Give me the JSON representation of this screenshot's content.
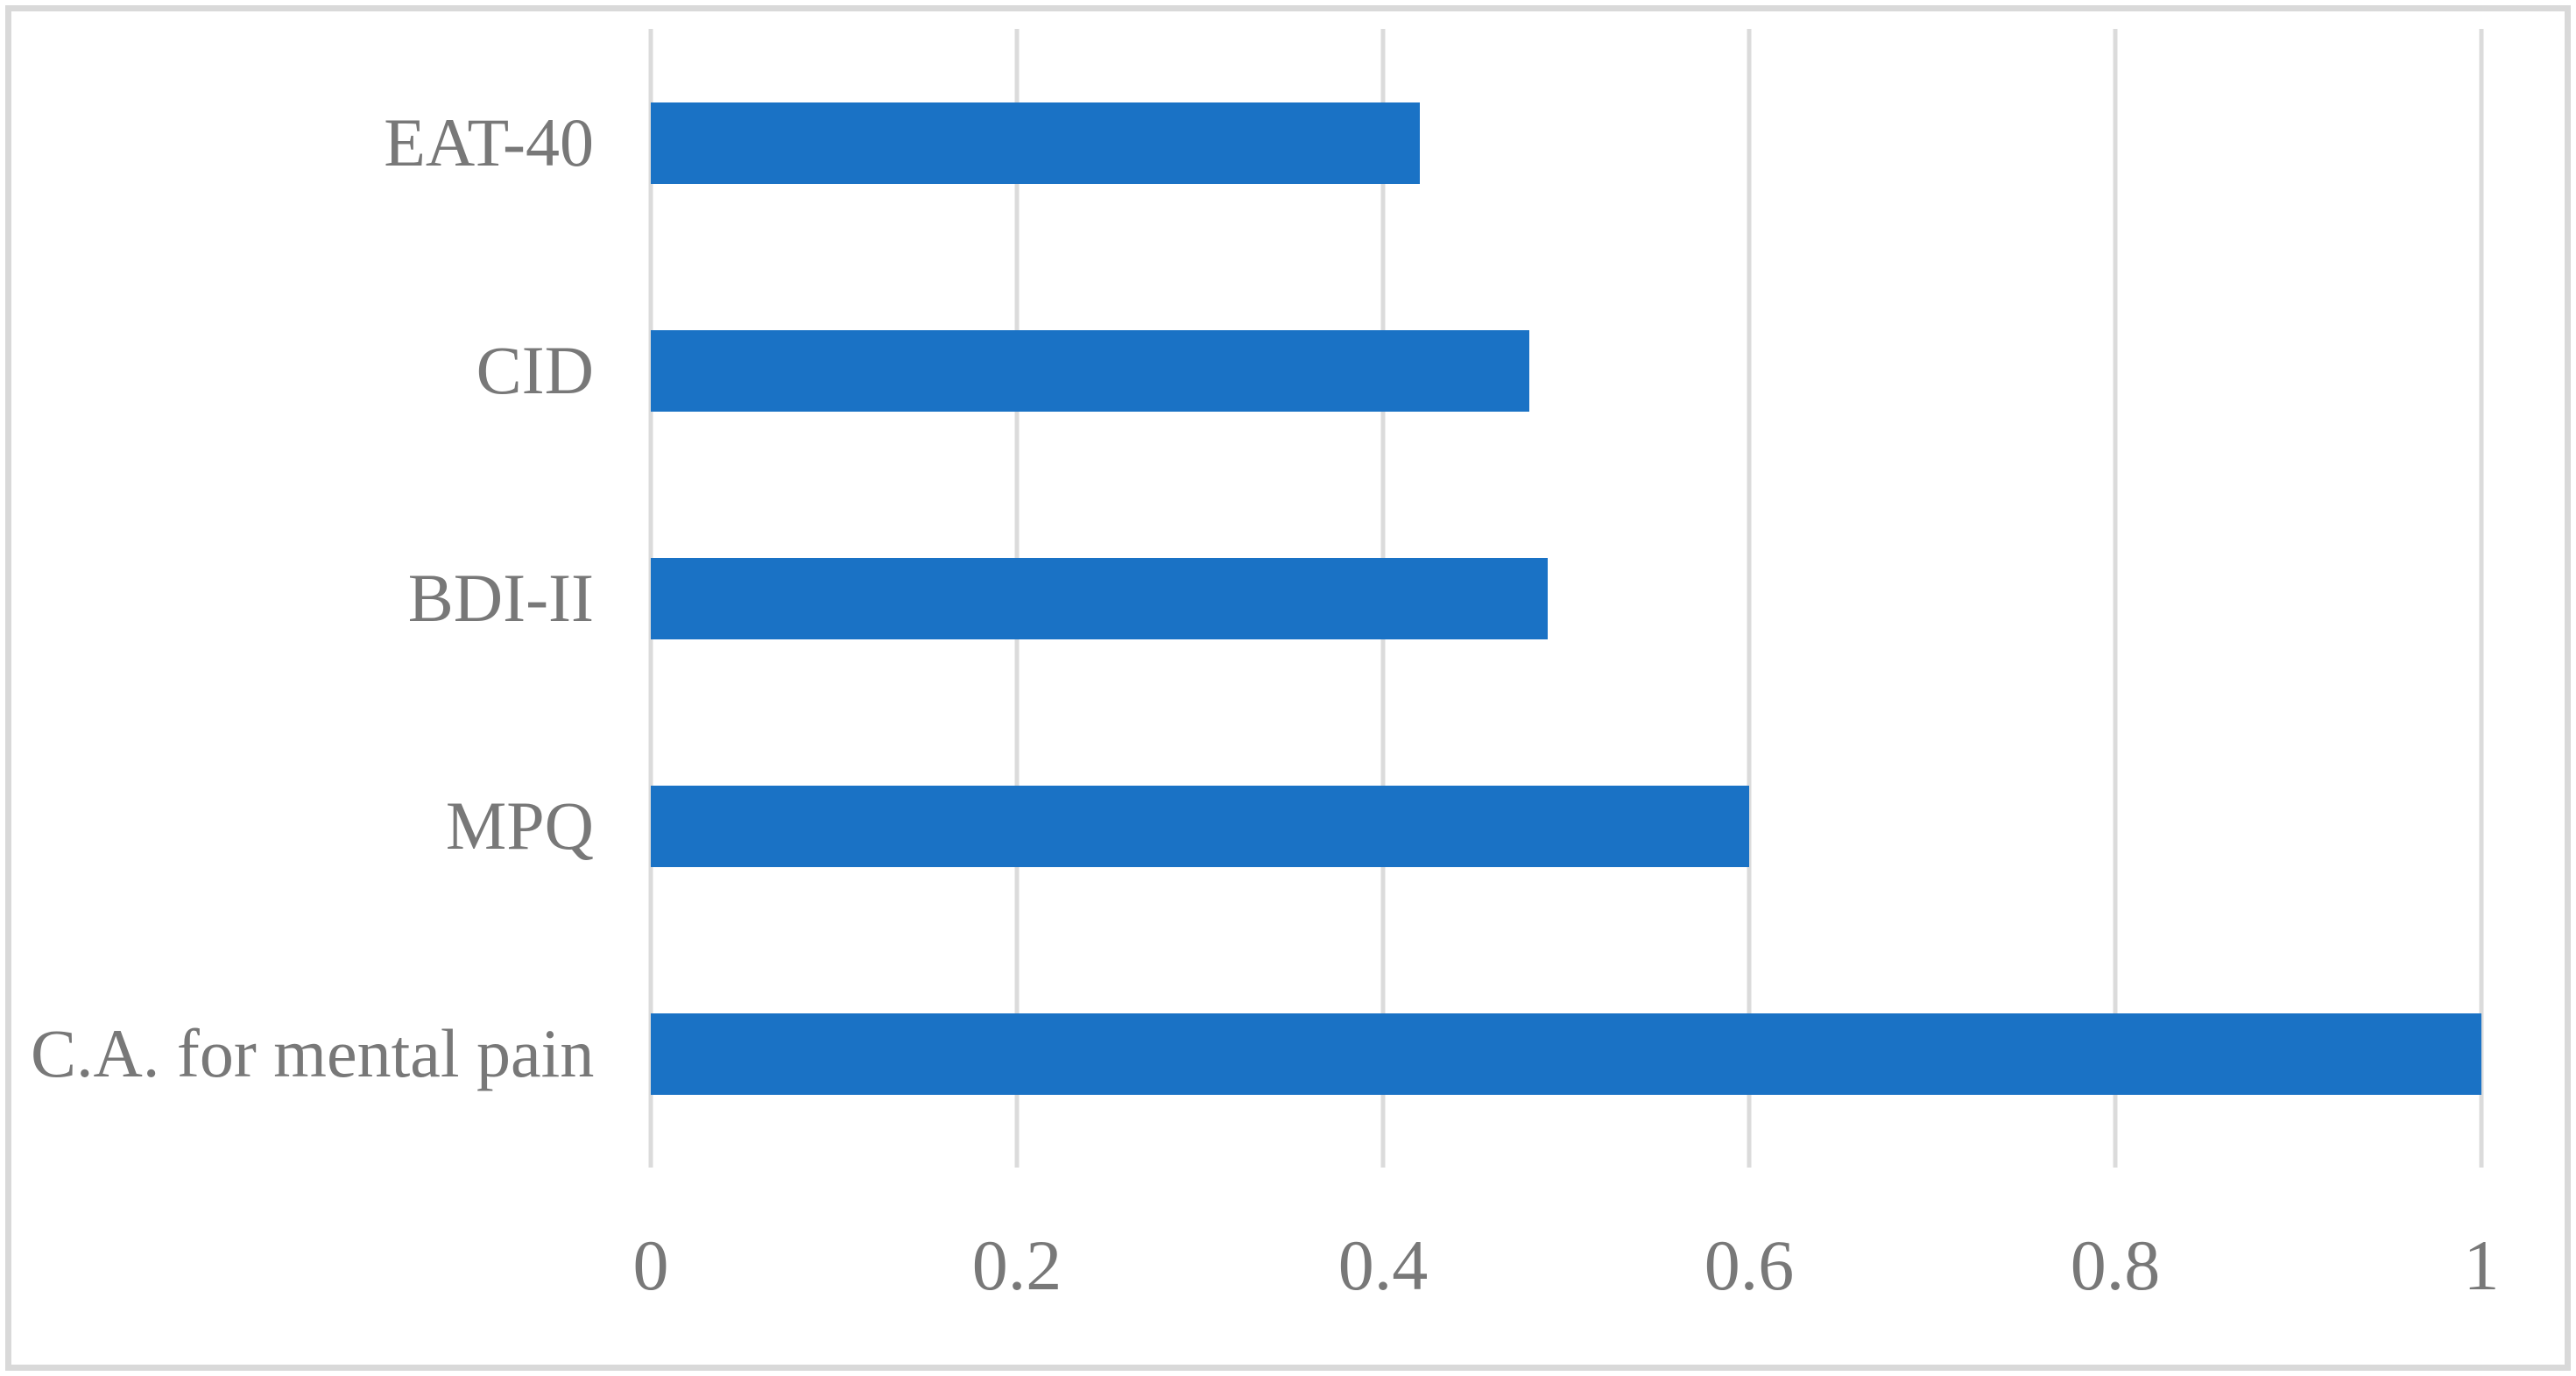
{
  "chart": {
    "background_color": "#ffffff",
    "frame_border_color": "#d9d9d9",
    "gridline_color": "#dbdbdb",
    "bar_color": "#1a72c5",
    "text_color": "#787878"
  },
  "chart_data": {
    "type": "bar",
    "orientation": "horizontal",
    "title": "",
    "xlabel": "",
    "ylabel": "",
    "categories": [
      "EAT-40",
      "CID",
      "BDI-II",
      "MPQ",
      "C.A. for mental pain"
    ],
    "values": [
      0.42,
      0.48,
      0.49,
      0.6,
      1.0
    ],
    "xlim": [
      0,
      1
    ],
    "x_ticks": [
      {
        "value": 0,
        "label": "0"
      },
      {
        "value": 0.2,
        "label": "0.2"
      },
      {
        "value": 0.4,
        "label": "0.4"
      },
      {
        "value": 0.6,
        "label": "0.6"
      },
      {
        "value": 0.8,
        "label": "0.8"
      },
      {
        "value": 1,
        "label": "1"
      }
    ],
    "gridlines": "vertical",
    "legend_position": "none"
  }
}
